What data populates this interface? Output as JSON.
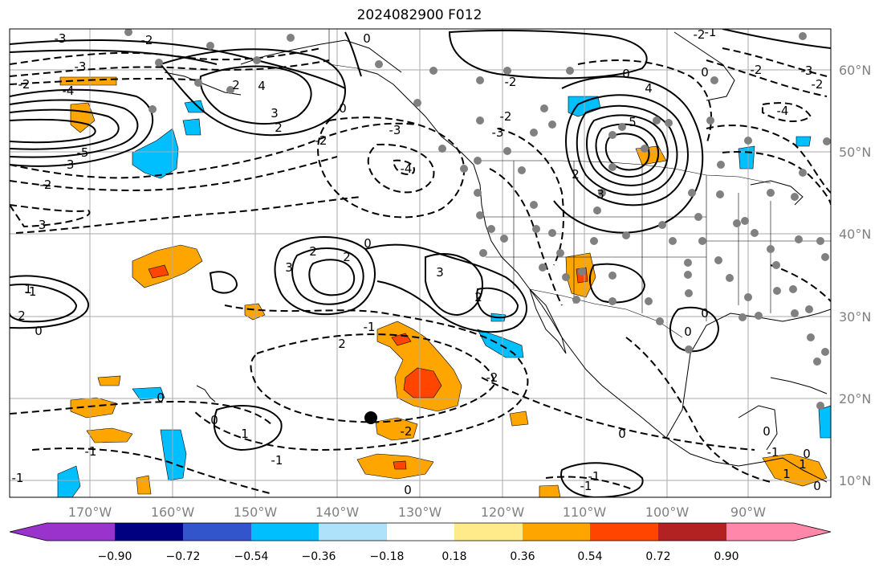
{
  "title": "2024082900 F012",
  "axes": {
    "lon_ticks": [
      "170°W",
      "160°W",
      "150°W",
      "140°W",
      "130°W",
      "120°W",
      "110°W",
      "100°W",
      "90°W"
    ],
    "lat_ticks": [
      "60°N",
      "50°N",
      "40°N",
      "30°N",
      "20°N",
      "10°N"
    ],
    "grid": true
  },
  "colorbar": {
    "ticks": [
      "−0.90",
      "−0.72",
      "−0.54",
      "−0.36",
      "−0.18",
      "0.18",
      "0.36",
      "0.54",
      "0.72",
      "0.90"
    ],
    "colors": [
      "#9933cc",
      "#000080",
      "#3355cc",
      "#00bfff",
      "#aee2fa",
      "#ffffff",
      "#ffeb8a",
      "#ffa500",
      "#ff4500",
      "#b22222",
      "#ff88aa"
    ],
    "extend": "both"
  },
  "contour_labels": [
    "-3",
    "-2",
    "-2",
    "-4",
    "-3",
    "-2",
    "-1",
    "-5",
    "-3",
    "-3",
    "-4",
    "-2",
    "-3",
    "2",
    "4",
    "3",
    "2",
    "0",
    "0",
    "0",
    "-2",
    "-3",
    "-2",
    "4",
    "5",
    "2",
    "3",
    "-2",
    "-1",
    "0",
    "-3",
    "-4",
    "-2",
    "0",
    "2",
    "2",
    "3",
    "-1",
    "2",
    "3",
    "2",
    "1",
    "2",
    "0",
    "-1",
    "-2",
    "1",
    "-2",
    "-1",
    "0",
    "0",
    "0",
    "-1",
    "-1",
    "0",
    "-1",
    "0",
    "0",
    "0",
    "-1",
    "1",
    "1",
    "0",
    "-2",
    "0"
  ],
  "filled_colors": {
    "orange": "#ffa500",
    "red": "#ff4500",
    "cyan": "#00bfff"
  }
}
